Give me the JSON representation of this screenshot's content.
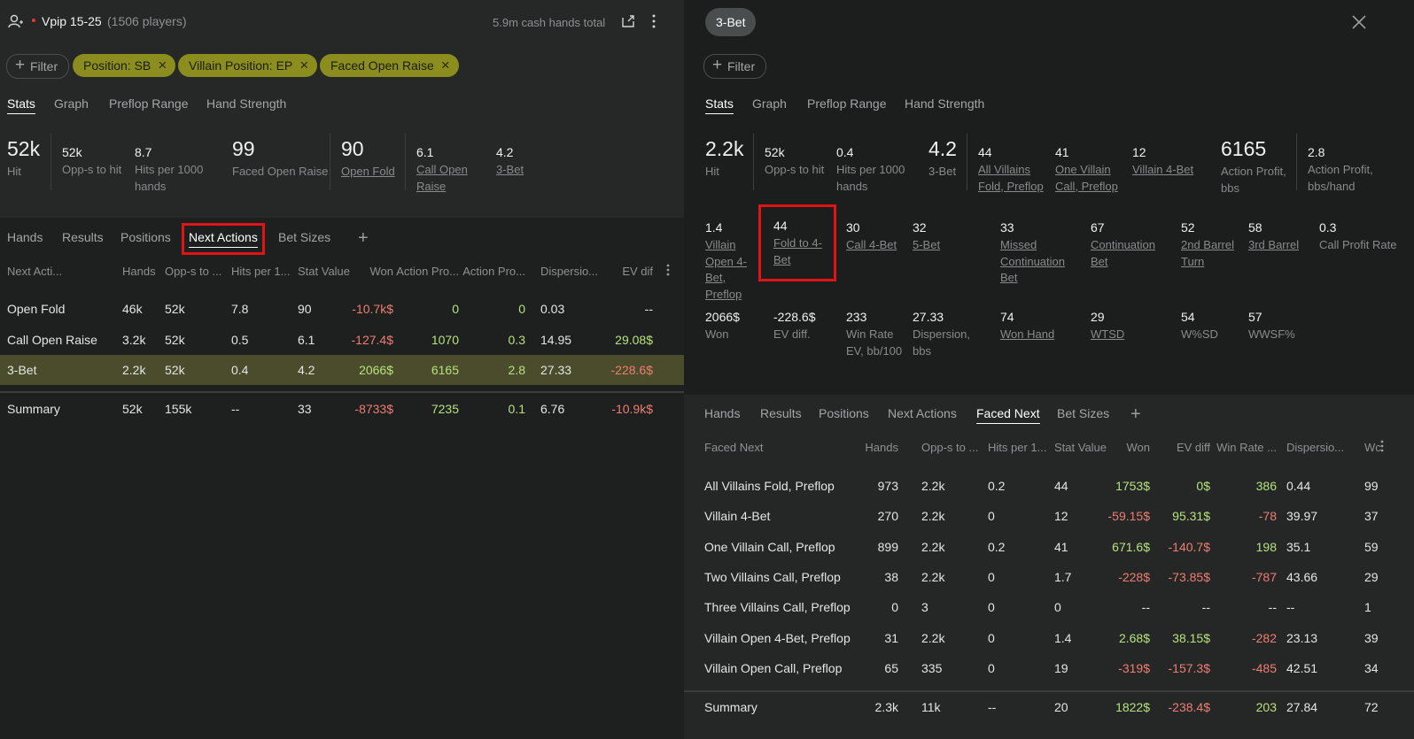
{
  "left_panel": {
    "header": {
      "title": "Vpip 15-25",
      "players": "(1506 players)",
      "hands_total": "5.9m cash hands total"
    },
    "filter_button": "Filter",
    "filters": [
      "Position: SB",
      "Villain Position: EP",
      "Faced Open Raise"
    ],
    "tabs": {
      "items": [
        "Stats",
        "Graph",
        "Preflop Range",
        "Hand Strength"
      ],
      "active": 0
    },
    "stats": [
      [
        {
          "value": "52k",
          "label": "Hit",
          "big": true
        },
        {
          "value": "52k",
          "label": "Opp-s to hit"
        },
        {
          "value": "8.7",
          "label": "Hits per 1000 hands"
        },
        {
          "value": "99",
          "label": "Faced Open Raise",
          "big": true
        },
        {
          "value": "90",
          "label": "Open Fold",
          "big": true,
          "link": true
        },
        {
          "value": "6.1",
          "label": "Call Open Raise",
          "link": true
        },
        {
          "value": "4.2",
          "label": "3-Bet",
          "link": true
        }
      ]
    ],
    "subtabs": {
      "items": [
        "Hands",
        "Results",
        "Positions",
        "Next Actions",
        "Bet Sizes"
      ],
      "active": 3,
      "highlighted": 3
    },
    "table": {
      "headers": [
        "Next Acti...",
        "Hands",
        "Opp-s to ...",
        "Hits per 1...",
        "Stat Value",
        "Won",
        "Action Pro...",
        "Action Pro...",
        "Dispersio...",
        "EV dif"
      ],
      "rows": [
        [
          "Open Fold",
          "46k",
          "52k",
          "7.8",
          "90",
          "-10.7k$",
          "0",
          "0",
          "0.03",
          "--"
        ],
        [
          "Call Open Raise",
          "3.2k",
          "52k",
          "0.5",
          "6.1",
          "-127.4$",
          "1070",
          "0.3",
          "14.95",
          "29.08$"
        ],
        [
          "3-Bet",
          "2.2k",
          "52k",
          "0.4",
          "4.2",
          "2066$",
          "6165",
          "2.8",
          "27.33",
          "-228.6$"
        ]
      ],
      "summary": [
        "Summary",
        "52k",
        "155k",
        "--",
        "33",
        "-8733$",
        "7235",
        "0.1",
        "6.76",
        "-10.9k$"
      ],
      "selected_row": 2,
      "colored_columns": [
        5,
        6,
        7,
        9
      ]
    }
  },
  "right_panel": {
    "chip": "3-Bet",
    "filter_button": "Filter",
    "tabs": {
      "items": [
        "Stats",
        "Graph",
        "Preflop Range",
        "Hand Strength"
      ],
      "active": 0
    },
    "stats": [
      [
        {
          "value": "2.2k",
          "label": "Hit",
          "big": true
        },
        {
          "value": "52k",
          "label": "Opp-s to hit"
        },
        {
          "value": "0.4",
          "label": "Hits per 1000 hands"
        },
        {
          "value": "4.2",
          "label": "3-Bet",
          "big": true
        },
        {
          "value": "44",
          "label": "All Villains Fold, Preflop",
          "link": true
        },
        {
          "value": "41",
          "label": "One Villain Call, Preflop",
          "link": true
        },
        {
          "value": "12",
          "label": "Villain 4-Bet",
          "link": true
        },
        {
          "value": "6165",
          "label": "Action Profit, bbs",
          "big": true,
          "tone": "green"
        },
        {
          "value": "2.8",
          "label": "Action Profit, bbs/hand",
          "tone": "green"
        }
      ],
      [
        {
          "value": "1.4",
          "label": "Villain Open 4-Bet, Preflop",
          "link": true
        },
        {
          "value": "44",
          "label": "Fold to 4-Bet",
          "link": true,
          "highlighted": true
        },
        {
          "value": "30",
          "label": "Call 4-Bet",
          "link": true
        },
        {
          "value": "32",
          "label": "5-Bet",
          "link": true
        },
        {
          "value": "33",
          "label": "Missed Continuation Bet",
          "link": true
        },
        {
          "value": "67",
          "label": "Continuation Bet",
          "link": true
        },
        {
          "value": "52",
          "label": "2nd Barrel Turn",
          "link": true
        },
        {
          "value": "58",
          "label": "3rd Barrel",
          "link": true
        },
        {
          "value": "0.3",
          "label": "Call Profit Rate",
          "tone": "green"
        }
      ],
      [
        {
          "value": "2066$",
          "label": "Won",
          "tone": "green"
        },
        {
          "value": "-228.6$",
          "label": "EV diff.",
          "tone": "red"
        },
        {
          "value": "233",
          "label": "Win Rate EV, bb/100",
          "tone": "green"
        },
        {
          "value": "27.33",
          "label": "Dispersion, bbs"
        },
        {
          "value": "74",
          "label": "Won Hand",
          "link": true
        },
        {
          "value": "29",
          "label": "WTSD",
          "link": true
        },
        {
          "value": "54",
          "label": "W%SD"
        },
        {
          "value": "57",
          "label": "WWSF%"
        }
      ]
    ],
    "subtabs": {
      "items": [
        "Hands",
        "Results",
        "Positions",
        "Next Actions",
        "Faced Next",
        "Bet Sizes"
      ],
      "active": 4
    },
    "table": {
      "headers": [
        "Faced Next",
        "Hands",
        "Opp-s to ...",
        "Hits per 1...",
        "Stat Value",
        "Won",
        "EV diff",
        "Win Rate ...",
        "Dispersio...",
        "Wc"
      ],
      "rows": [
        [
          "All Villains Fold, Preflop",
          "973",
          "2.2k",
          "0.2",
          "44",
          "1753$",
          "0$",
          "386",
          "0.44",
          "99"
        ],
        [
          "Villain 4-Bet",
          "270",
          "2.2k",
          "0",
          "12",
          "-59.15$",
          "95.31$",
          "-78",
          "39.97",
          "37"
        ],
        [
          "One Villain Call, Preflop",
          "899",
          "2.2k",
          "0.2",
          "41",
          "671.6$",
          "-140.7$",
          "198",
          "35.1",
          "59"
        ],
        [
          "Two Villains Call, Preflop",
          "38",
          "2.2k",
          "0",
          "1.7",
          "-228$",
          "-73.85$",
          "-787",
          "43.66",
          "29"
        ],
        [
          "Three Villains Call, Preflop",
          "0",
          "3",
          "0",
          "0",
          "--",
          "--",
          "--",
          "--",
          "1"
        ],
        [
          "Villain Open 4-Bet, Preflop",
          "31",
          "2.2k",
          "0",
          "1.4",
          "2.68$",
          "38.15$",
          "-282",
          "23.13",
          "39"
        ],
        [
          "Villain Open Call, Preflop",
          "65",
          "335",
          "0",
          "19",
          "-319$",
          "-157.3$",
          "-485",
          "42.51",
          "34"
        ]
      ],
      "summary": [
        "Summary",
        "2.3k",
        "11k",
        "--",
        "20",
        "1822$",
        "-238.4$",
        "203",
        "27.84",
        "72"
      ],
      "colored_columns": [
        5,
        6,
        7
      ]
    }
  }
}
